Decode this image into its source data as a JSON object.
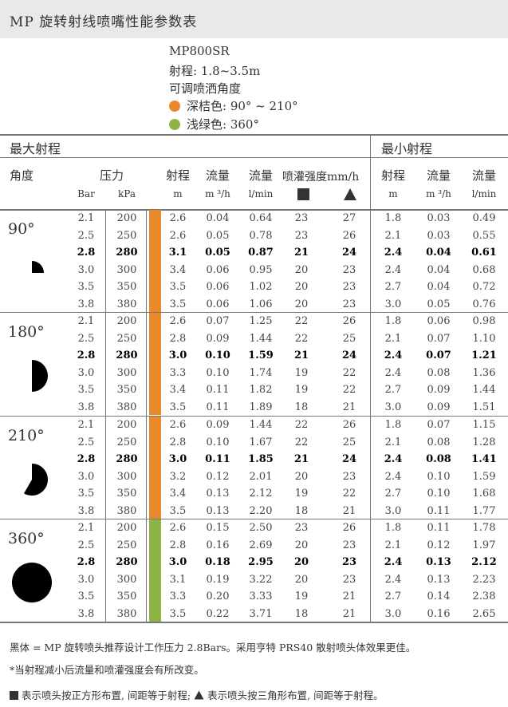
{
  "title": "MP 旋转射线喷嘴性能参数表",
  "model": {
    "name": "MP800SR",
    "range": "射程: 1.8~3.5m",
    "adjustable": "可调喷洒角度",
    "options": [
      {
        "color": "#e8892b",
        "label": "深桔色: 90° ~ 210°"
      },
      {
        "color": "#8db444",
        "label": "浅绿色: 360°"
      }
    ]
  },
  "table": {
    "section_max": "最大射程",
    "section_min": "最小射程",
    "headers": {
      "angle": "角度",
      "pressure": "压力",
      "pressure_bar": "Bar",
      "pressure_kpa": "kPa",
      "range": "射程",
      "range_unit": "m",
      "flow_m3h": "流量",
      "flow_m3h_unit": "m ³/h",
      "flow_lmin": "流量",
      "flow_lmin_unit": "l/min",
      "precip": "喷灌强度mm/h",
      "square_icon": "square-layout",
      "triangle_icon": "triangle-layout",
      "min_range": "射程",
      "min_range_unit": "m",
      "min_flow_m3h": "流量",
      "min_flow_m3h_unit": "m ³/h",
      "min_flow_lmin": "流量",
      "min_flow_lmin_unit": "l/min"
    },
    "groups": [
      {
        "angle": "90°",
        "bar_color": "#e8892b",
        "rows": [
          [
            "2.1",
            "200",
            "2.6",
            "0.04",
            "0.64",
            "23",
            "27",
            "1.8",
            "0.03",
            "0.49"
          ],
          [
            "2.5",
            "250",
            "2.6",
            "0.05",
            "0.78",
            "23",
            "26",
            "2.1",
            "0.03",
            "0.55"
          ],
          [
            "2.8",
            "280",
            "3.1",
            "0.05",
            "0.87",
            "21",
            "24",
            "2.4",
            "0.04",
            "0.61"
          ],
          [
            "3.0",
            "300",
            "3.4",
            "0.06",
            "0.95",
            "20",
            "23",
            "2.4",
            "0.04",
            "0.68"
          ],
          [
            "3.5",
            "350",
            "3.5",
            "0.06",
            "1.02",
            "20",
            "23",
            "2.7",
            "0.04",
            "0.72"
          ],
          [
            "3.8",
            "380",
            "3.5",
            "0.06",
            "1.06",
            "20",
            "23",
            "3.0",
            "0.05",
            "0.76"
          ]
        ]
      },
      {
        "angle": "180°",
        "bar_color": "#e8892b",
        "rows": [
          [
            "2.1",
            "200",
            "2.6",
            "0.07",
            "1.25",
            "22",
            "26",
            "1.8",
            "0.06",
            "0.98"
          ],
          [
            "2.5",
            "250",
            "2.8",
            "0.09",
            "1.44",
            "22",
            "25",
            "2.1",
            "0.07",
            "1.10"
          ],
          [
            "2.8",
            "280",
            "3.0",
            "0.10",
            "1.59",
            "21",
            "24",
            "2.4",
            "0.07",
            "1.21"
          ],
          [
            "3.0",
            "300",
            "3.3",
            "0.10",
            "1.74",
            "19",
            "22",
            "2.4",
            "0.08",
            "1.36"
          ],
          [
            "3.5",
            "350",
            "3.4",
            "0.11",
            "1.82",
            "19",
            "22",
            "2.7",
            "0.09",
            "1.44"
          ],
          [
            "3.8",
            "380",
            "3.5",
            "0.11",
            "1.89",
            "18",
            "21",
            "3.0",
            "0.09",
            "1.51"
          ]
        ]
      },
      {
        "angle": "210°",
        "bar_color": "#e8892b",
        "rows": [
          [
            "2.1",
            "200",
            "2.6",
            "0.09",
            "1.44",
            "22",
            "26",
            "1.8",
            "0.07",
            "1.15"
          ],
          [
            "2.5",
            "250",
            "2.8",
            "0.10",
            "1.67",
            "22",
            "25",
            "2.1",
            "0.08",
            "1.28"
          ],
          [
            "2.8",
            "280",
            "3.0",
            "0.11",
            "1.85",
            "21",
            "24",
            "2.4",
            "0.08",
            "1.41"
          ],
          [
            "3.0",
            "300",
            "3.2",
            "0.12",
            "2.01",
            "20",
            "23",
            "2.4",
            "0.10",
            "1.59"
          ],
          [
            "3.5",
            "350",
            "3.4",
            "0.13",
            "2.12",
            "19",
            "22",
            "2.7",
            "0.10",
            "1.68"
          ],
          [
            "3.8",
            "380",
            "3.5",
            "0.13",
            "2.20",
            "18",
            "21",
            "3.0",
            "0.11",
            "1.77"
          ]
        ]
      },
      {
        "angle": "360°",
        "bar_color": "#8db444",
        "rows": [
          [
            "2.1",
            "200",
            "2.6",
            "0.15",
            "2.50",
            "23",
            "26",
            "1.8",
            "0.11",
            "1.78"
          ],
          [
            "2.5",
            "250",
            "2.8",
            "0.16",
            "2.69",
            "20",
            "23",
            "2.1",
            "0.12",
            "1.97"
          ],
          [
            "2.8",
            "280",
            "3.0",
            "0.18",
            "2.95",
            "20",
            "23",
            "2.4",
            "0.13",
            "2.12"
          ],
          [
            "3.0",
            "300",
            "3.1",
            "0.19",
            "3.22",
            "20",
            "23",
            "2.4",
            "0.13",
            "2.23"
          ],
          [
            "3.5",
            "350",
            "3.3",
            "0.20",
            "3.33",
            "19",
            "21",
            "2.7",
            "0.14",
            "2.38"
          ],
          [
            "3.8",
            "380",
            "3.5",
            "0.22",
            "3.71",
            "18",
            "21",
            "3.0",
            "0.16",
            "2.65"
          ]
        ]
      }
    ]
  },
  "notes": {
    "note1": "黑体 = MP 旋转喷头推荐设计工作压力 2.8Bars。采用亨特 PRS40 散射喷头体效果更佳。",
    "note2": "*当射程减小后流量和喷灌强度会有所改变。",
    "note3_square": "表示喷头按正方形布置, 间距等于射程;",
    "note3_triangle": "表示喷头按三角形布置, 间距等于射程。"
  }
}
